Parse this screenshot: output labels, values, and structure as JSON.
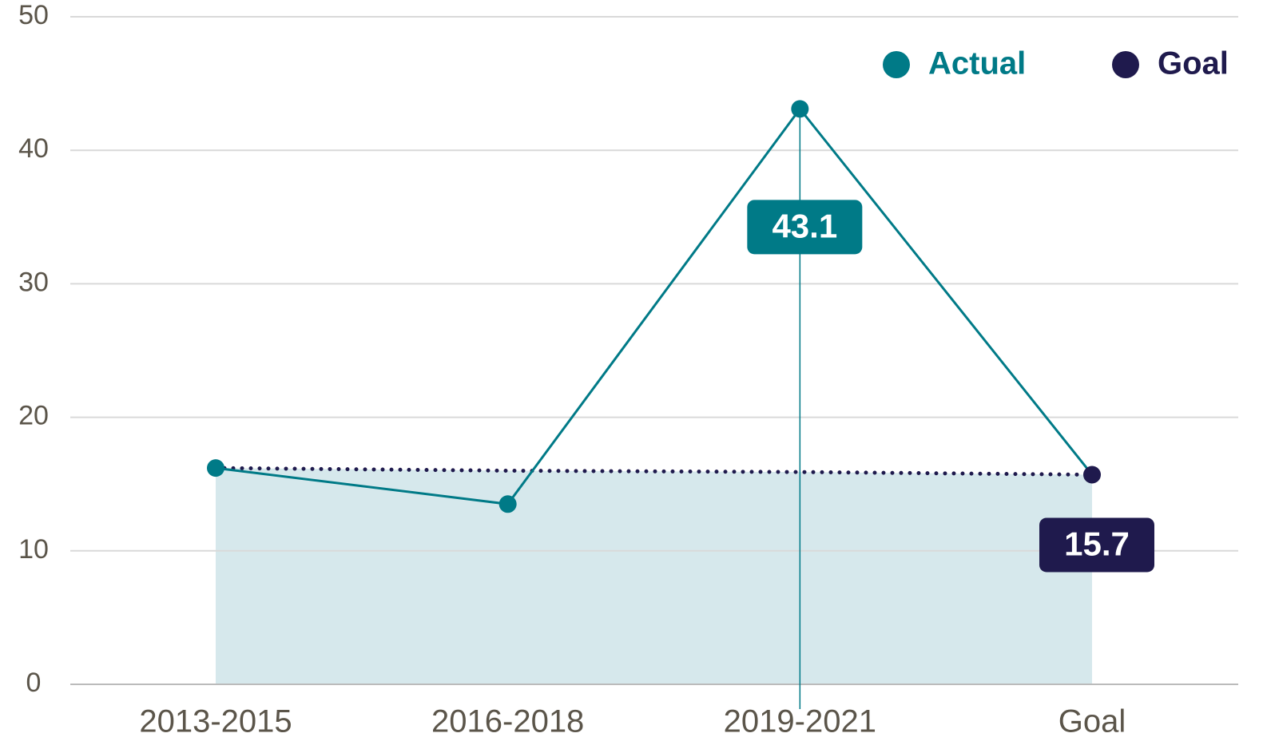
{
  "chart_data": {
    "type": "line",
    "categories": [
      "2013-2015",
      "2016-2018",
      "2019-2021",
      "Goal"
    ],
    "series": [
      {
        "name": "Actual",
        "color": "#007a87",
        "values": [
          16.2,
          13.5,
          43.1,
          15.7
        ],
        "labels_at": [
          2
        ]
      },
      {
        "name": "Goal",
        "color": "#1f1a4d",
        "values": [
          16.2,
          16.0,
          15.9,
          15.7
        ],
        "labels_at": [
          3
        ],
        "area_color": "#d6e8ec"
      }
    ],
    "ylim": [
      0,
      50
    ],
    "yticks": [
      0,
      10,
      20,
      30,
      40,
      50
    ],
    "grid": true,
    "legend": "top-right"
  }
}
